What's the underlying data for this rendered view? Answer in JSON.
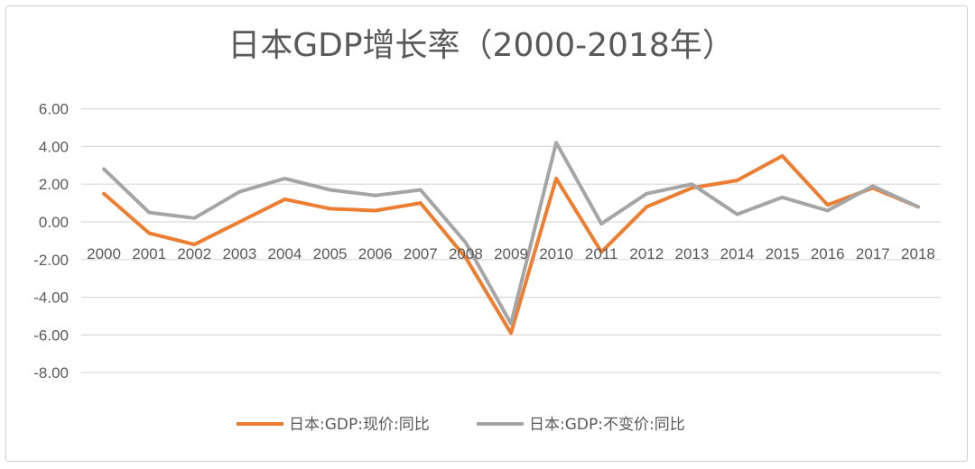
{
  "chart_data": {
    "type": "line",
    "title": "日本GDP增长率（2000-2018年）",
    "xlabel": "",
    "ylabel": "",
    "ylim": [
      -8,
      6
    ],
    "y_ticks": [
      "6.00",
      "4.00",
      "2.00",
      "0.00",
      "-2.00",
      "-4.00",
      "-6.00",
      "-8.00"
    ],
    "categories": [
      "2000",
      "2001",
      "2002",
      "2003",
      "2004",
      "2005",
      "2006",
      "2007",
      "2008",
      "2009",
      "2010",
      "2011",
      "2012",
      "2013",
      "2014",
      "2015",
      "2016",
      "2017",
      "2018"
    ],
    "grid": true,
    "legend_position": "bottom",
    "series": [
      {
        "name": "日本:GDP:现价:同比",
        "color": "#ED7D31",
        "values": [
          1.5,
          -0.6,
          -1.2,
          0.0,
          1.2,
          0.7,
          0.6,
          1.0,
          -1.9,
          -5.9,
          2.3,
          -1.6,
          0.8,
          1.8,
          2.2,
          3.5,
          0.9,
          1.8,
          0.8
        ]
      },
      {
        "name": "日本:GDP:不变价:同比",
        "color": "#A5A5A5",
        "values": [
          2.8,
          0.5,
          0.2,
          1.6,
          2.3,
          1.7,
          1.4,
          1.7,
          -1.1,
          -5.4,
          4.2,
          -0.1,
          1.5,
          2.0,
          0.4,
          1.3,
          0.6,
          1.9,
          0.8
        ]
      }
    ]
  }
}
